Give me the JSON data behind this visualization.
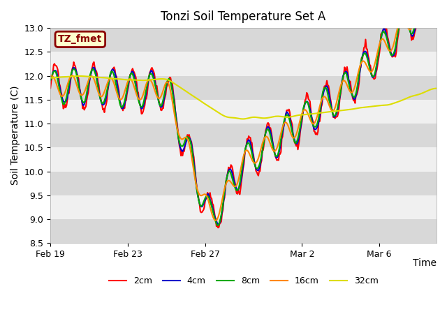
{
  "title": "Tonzi Soil Temperature Set A",
  "ylabel": "Soil Temperature (C)",
  "xlabel": "Time",
  "ylim": [
    8.5,
    13.0
  ],
  "yticks": [
    8.5,
    9.0,
    9.5,
    10.0,
    10.5,
    11.0,
    11.5,
    12.0,
    12.5,
    13.0
  ],
  "label_box_text": "TZ_fmet",
  "label_box_color": "#ffffcc",
  "label_box_border": "#8b0000",
  "bg_color": "#ffffff",
  "plot_bg_color": "#d8d8d8",
  "band_color_white": "#f0f0f0",
  "band_color_gray": "#d8d8d8",
  "line_colors": {
    "2cm": "#ff0000",
    "4cm": "#0000cc",
    "8cm": "#00aa00",
    "16cm": "#ff8800",
    "32cm": "#dddd00"
  },
  "line_width": 1.5,
  "legend_labels": [
    "2cm",
    "4cm",
    "8cm",
    "16cm",
    "32cm"
  ],
  "xtick_labels": [
    "Feb 19",
    "Feb 23",
    "Feb 27",
    "Mar 2",
    "Mar 6"
  ],
  "n_points": 480
}
